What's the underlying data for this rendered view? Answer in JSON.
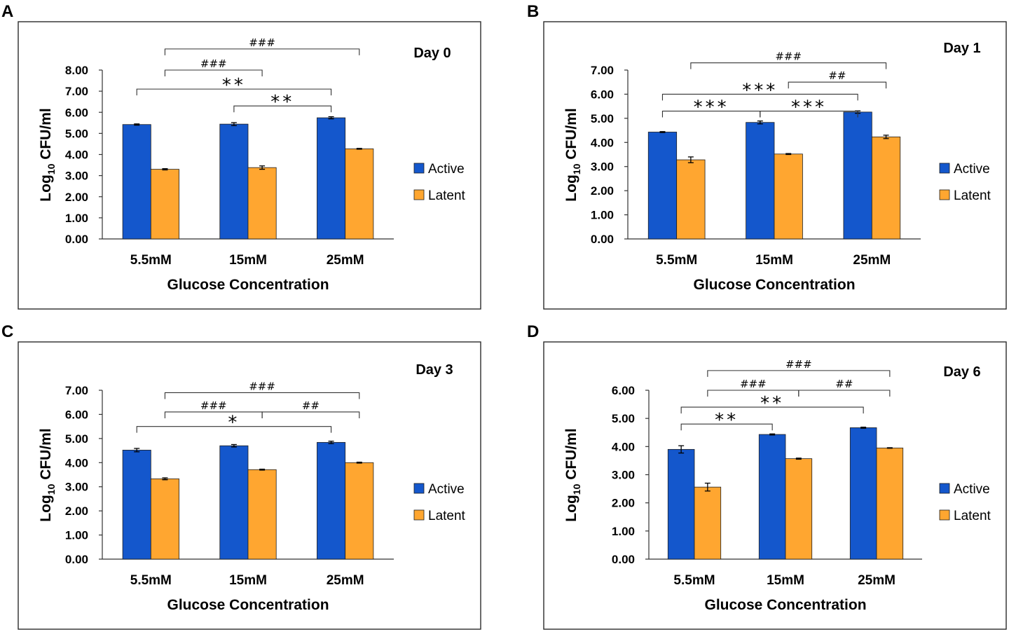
{
  "colors": {
    "active": "#1457cc",
    "latent": "#ffa630"
  },
  "axis": {
    "xlabel": "Glucose Concentration",
    "ylabel_prefix": "Log",
    "ylabel_sub": "10",
    "ylabel_suffix": " CFU/ml"
  },
  "legend": [
    "Active",
    "Latent"
  ],
  "chart_data": [
    {
      "panel": "A",
      "title": "Day 0",
      "type": "bar",
      "categories": [
        "5.5mM",
        "15mM",
        "25mM"
      ],
      "ylim": [
        0,
        8
      ],
      "ytick_step": 1,
      "yticks": [
        "0.00",
        "1.00",
        "2.00",
        "3.00",
        "4.00",
        "5.00",
        "6.00",
        "7.00",
        "8.00"
      ],
      "series": [
        {
          "name": "Active",
          "values": [
            5.42,
            5.44,
            5.74
          ],
          "errors": [
            0.03,
            0.07,
            0.05
          ]
        },
        {
          "name": "Latent",
          "values": [
            3.3,
            3.38,
            4.27
          ],
          "errors": [
            0.03,
            0.08,
            0.02
          ]
        }
      ],
      "brackets": [
        {
          "label": "###",
          "from": [
            0,
            "Latent"
          ],
          "to": [
            2,
            "Latent"
          ],
          "level": 9.0,
          "style": "hash"
        },
        {
          "label": "###",
          "from": [
            0,
            "Latent"
          ],
          "to": [
            1,
            "Latent"
          ],
          "level": 8.0,
          "style": "hash"
        },
        {
          "label": "**",
          "from": [
            0,
            "Active"
          ],
          "to": [
            2,
            "Active"
          ],
          "level": 7.1,
          "style": "star"
        },
        {
          "label": "**",
          "from": [
            1,
            "Active"
          ],
          "to": [
            2,
            "Active"
          ],
          "level": 6.3,
          "style": "star"
        }
      ]
    },
    {
      "panel": "B",
      "title": "Day 1",
      "type": "bar",
      "categories": [
        "5.5mM",
        "15mM",
        "25mM"
      ],
      "ylim": [
        0,
        7
      ],
      "ytick_step": 1,
      "yticks": [
        "0.00",
        "1.00",
        "2.00",
        "3.00",
        "4.00",
        "5.00",
        "6.00",
        "7.00"
      ],
      "series": [
        {
          "name": "Active",
          "values": [
            4.43,
            4.83,
            5.26
          ],
          "errors": [
            0.02,
            0.06,
            0.05
          ]
        },
        {
          "name": "Latent",
          "values": [
            3.28,
            3.52,
            4.23
          ],
          "errors": [
            0.12,
            0.02,
            0.07
          ]
        }
      ],
      "brackets": [
        {
          "label": "###",
          "from": [
            0,
            "Latent"
          ],
          "to": [
            2,
            "Latent"
          ],
          "level": 7.3,
          "style": "hash"
        },
        {
          "label": "##",
          "from": [
            1,
            "Latent"
          ],
          "to": [
            2,
            "Latent"
          ],
          "level": 6.5,
          "style": "hash"
        },
        {
          "label": "***",
          "from": [
            0,
            "Active"
          ],
          "to": [
            2,
            "Active"
          ],
          "level": 6.0,
          "style": "star"
        },
        {
          "label": "***",
          "from": [
            0,
            "Active"
          ],
          "to": [
            1,
            "Active"
          ],
          "level": 5.3,
          "style": "star"
        },
        {
          "label": "***",
          "from": [
            1,
            "Active"
          ],
          "to": [
            2,
            "Active"
          ],
          "level": 5.3,
          "style": "star"
        }
      ]
    },
    {
      "panel": "C",
      "title": "Day 3",
      "type": "bar",
      "categories": [
        "5.5mM",
        "15mM",
        "25mM"
      ],
      "ylim": [
        0,
        7
      ],
      "ytick_step": 1,
      "yticks": [
        "0.00",
        "1.00",
        "2.00",
        "3.00",
        "4.00",
        "5.00",
        "6.00",
        "7.00"
      ],
      "series": [
        {
          "name": "Active",
          "values": [
            4.52,
            4.7,
            4.84
          ],
          "errors": [
            0.07,
            0.05,
            0.05
          ]
        },
        {
          "name": "Latent",
          "values": [
            3.33,
            3.71,
            4.0
          ],
          "errors": [
            0.04,
            0.02,
            0.02
          ]
        }
      ],
      "brackets": [
        {
          "label": "###",
          "from": [
            0,
            "Latent"
          ],
          "to": [
            2,
            "Latent"
          ],
          "level": 6.9,
          "style": "hash"
        },
        {
          "label": "###",
          "from": [
            0,
            "Latent"
          ],
          "to": [
            1,
            "Latent"
          ],
          "level": 6.1,
          "style": "hash"
        },
        {
          "label": "##",
          "from": [
            1,
            "Latent"
          ],
          "to": [
            2,
            "Latent"
          ],
          "level": 6.1,
          "style": "hash"
        },
        {
          "label": "*",
          "from": [
            0,
            "Active"
          ],
          "to": [
            2,
            "Active"
          ],
          "level": 5.5,
          "style": "star"
        }
      ]
    },
    {
      "panel": "D",
      "title": "Day 6",
      "type": "bar",
      "categories": [
        "5.5mM",
        "15mM",
        "25mM"
      ],
      "ylim": [
        0,
        6
      ],
      "ytick_step": 1,
      "yticks": [
        "0.00",
        "1.00",
        "2.00",
        "3.00",
        "4.00",
        "5.00",
        "6.00"
      ],
      "series": [
        {
          "name": "Active",
          "values": [
            3.9,
            4.43,
            4.67
          ],
          "errors": [
            0.13,
            0.02,
            0.02
          ]
        },
        {
          "name": "Latent",
          "values": [
            2.56,
            3.57,
            3.95
          ],
          "errors": [
            0.14,
            0.02,
            0.01
          ]
        }
      ],
      "brackets": [
        {
          "label": "###",
          "from": [
            0,
            "Latent"
          ],
          "to": [
            2,
            "Latent"
          ],
          "level": 6.7,
          "style": "hash"
        },
        {
          "label": "###",
          "from": [
            0,
            "Latent"
          ],
          "to": [
            1,
            "Latent"
          ],
          "level": 6.0,
          "style": "hash"
        },
        {
          "label": "##",
          "from": [
            1,
            "Latent"
          ],
          "to": [
            2,
            "Latent"
          ],
          "level": 6.0,
          "style": "hash"
        },
        {
          "label": "**",
          "from": [
            0,
            "Active"
          ],
          "to": [
            2,
            "Active"
          ],
          "level": 5.4,
          "style": "star"
        },
        {
          "label": "**",
          "from": [
            0,
            "Active"
          ],
          "to": [
            1,
            "Active"
          ],
          "level": 4.8,
          "style": "star"
        }
      ]
    }
  ]
}
